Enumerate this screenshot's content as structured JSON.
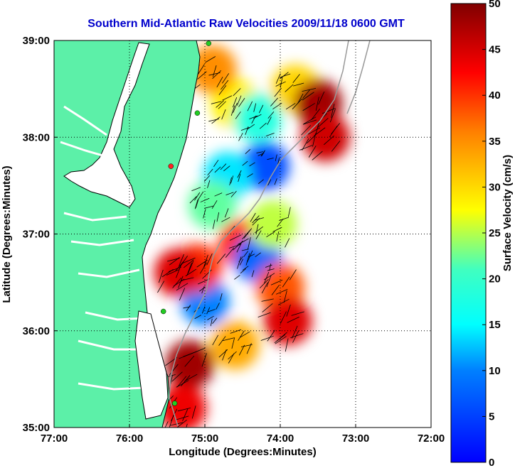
{
  "chart_data": {
    "type": "heatmap",
    "title": "Southern Mid-Atlantic Raw Velocities 2009/11/18 0600 GMT",
    "xlabel": "Longitude (Degrees:Minutes)",
    "ylabel": "Latitude (Degrees:Minutes)",
    "colorbar_label": "Surface Velocity (cm/s)",
    "xlim": [
      -77,
      -72
    ],
    "ylim": [
      35,
      39
    ],
    "x_ticks": [
      {
        "value": -77,
        "label": "77:00"
      },
      {
        "value": -76,
        "label": "76:00"
      },
      {
        "value": -75,
        "label": "75:00"
      },
      {
        "value": -74,
        "label": "74:00"
      },
      {
        "value": -73,
        "label": "73:00"
      },
      {
        "value": -72,
        "label": "72:00"
      }
    ],
    "y_ticks": [
      {
        "value": 35,
        "label": "35:00"
      },
      {
        "value": 36,
        "label": "36:00"
      },
      {
        "value": 37,
        "label": "37:00"
      },
      {
        "value": 38,
        "label": "38:00"
      },
      {
        "value": 39,
        "label": "39:00"
      }
    ],
    "colorbar": {
      "min": 0,
      "max": 50,
      "ticks": [
        0,
        5,
        10,
        15,
        20,
        25,
        30,
        35,
        40,
        45,
        50
      ],
      "colors": [
        "#0000ff",
        "#00ffff",
        "#ffff00",
        "#ff0000",
        "#800000"
      ]
    },
    "grid": true,
    "land_color": "#5cf0a8",
    "coast_color": "#000000",
    "station_color": "#22cc22",
    "field": [
      {
        "lon": -74.6,
        "lat": 38.35,
        "speed": 28
      },
      {
        "lon": -74.3,
        "lat": 38.2,
        "speed": 18
      },
      {
        "lon": -74.2,
        "lat": 37.7,
        "speed": 6
      },
      {
        "lon": -73.8,
        "lat": 38.5,
        "speed": 30
      },
      {
        "lon": -73.5,
        "lat": 38.35,
        "speed": 48
      },
      {
        "lon": -73.4,
        "lat": 38.0,
        "speed": 45
      },
      {
        "lon": -74.9,
        "lat": 38.7,
        "speed": 35
      },
      {
        "lon": -74.7,
        "lat": 37.6,
        "speed": 14
      },
      {
        "lon": -74.9,
        "lat": 37.3,
        "speed": 22
      },
      {
        "lon": -74.5,
        "lat": 36.9,
        "speed": 40
      },
      {
        "lon": -74.3,
        "lat": 36.75,
        "speed": 8
      },
      {
        "lon": -74.1,
        "lat": 37.1,
        "speed": 25
      },
      {
        "lon": -74.0,
        "lat": 36.45,
        "speed": 38
      },
      {
        "lon": -75.0,
        "lat": 36.3,
        "speed": 10
      },
      {
        "lon": -75.1,
        "lat": 36.65,
        "speed": 40
      },
      {
        "lon": -75.35,
        "lat": 36.6,
        "speed": 44
      },
      {
        "lon": -75.2,
        "lat": 35.65,
        "speed": 48
      },
      {
        "lon": -74.6,
        "lat": 35.85,
        "speed": 33
      },
      {
        "lon": -75.3,
        "lat": 35.2,
        "speed": 43
      },
      {
        "lon": -73.9,
        "lat": 36.1,
        "speed": 44
      }
    ],
    "stations": [
      {
        "lon": -74.95,
        "lat": 38.97
      },
      {
        "lon": -75.1,
        "lat": 38.25
      },
      {
        "lon": -75.55,
        "lat": 36.2
      },
      {
        "lon": -75.4,
        "lat": 35.25
      }
    ],
    "red_marker": {
      "lon": -75.45,
      "lat": 37.7
    }
  }
}
